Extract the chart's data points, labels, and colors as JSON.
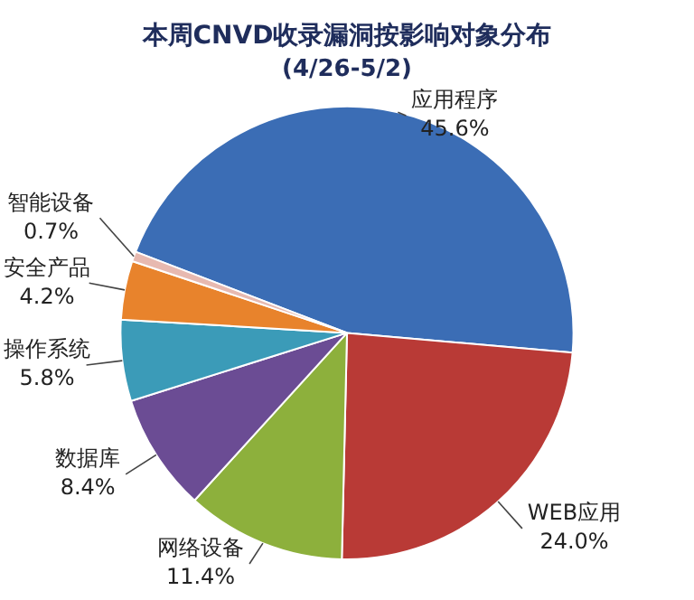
{
  "chart_data": {
    "type": "pie",
    "title": "本周CNVD收录漏洞按影响对象分布",
    "subtitle": "(4/26-5/2)",
    "categories": [
      "应用程序",
      "WEB应用",
      "网络设备",
      "数据库",
      "操作系统",
      "安全产品",
      "智能设备"
    ],
    "values": [
      45.6,
      24.0,
      11.4,
      8.4,
      5.8,
      4.2,
      0.7
    ],
    "colors": [
      "#3b6db5",
      "#b93a36",
      "#8db03c",
      "#6b4c94",
      "#3b9bb8",
      "#e8832c",
      "#e7b9b0"
    ],
    "value_labels": [
      "45.6%",
      "24.0%",
      "11.4%",
      "8.4%",
      "5.8%",
      "4.2%",
      "0.7%"
    ],
    "legend": false
  }
}
